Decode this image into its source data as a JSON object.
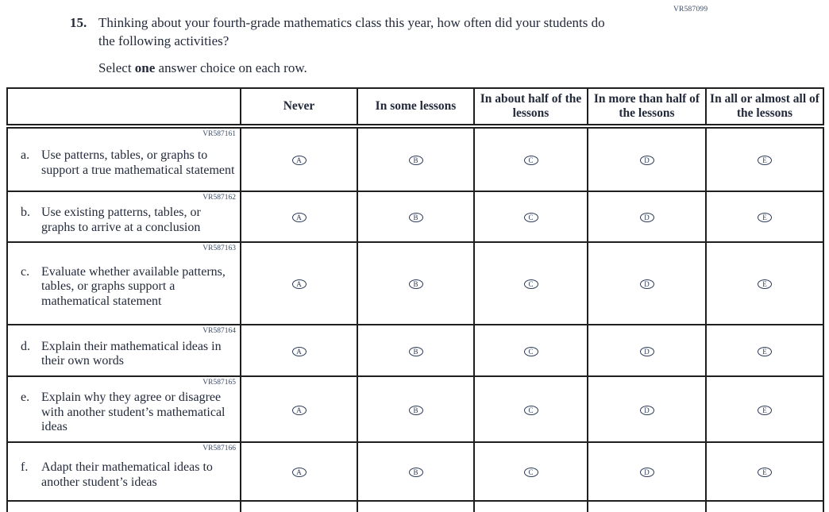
{
  "page": {
    "form_code": "VR587099",
    "question": {
      "number": "15.",
      "text": "Thinking about your fourth-grade mathematics class this year, how often did your students do the following activities?",
      "instruction_prefix": "Select ",
      "instruction_bold": "one",
      "instruction_suffix": " answer choice on each row."
    },
    "table": {
      "columns": [
        "Never",
        "In some lessons",
        "In about half of the lessons",
        "In more than half of the lessons",
        "In all or almost all of the lessons"
      ],
      "options": [
        "A",
        "B",
        "C",
        "D",
        "E"
      ],
      "rows": [
        {
          "code": "VR587161",
          "letter": "a.",
          "text": "Use patterns, tables, or graphs to support a true mathematical statement"
        },
        {
          "code": "VR587162",
          "letter": "b.",
          "text": "Use existing patterns, tables, or graphs to arrive at a conclusion"
        },
        {
          "code": "VR587163",
          "letter": "c.",
          "text": "Evaluate whether available patterns, tables, or graphs support a mathematical statement"
        },
        {
          "code": "VR587164",
          "letter": "d.",
          "text": "Explain their mathematical ideas in their own words"
        },
        {
          "code": "VR587165",
          "letter": "e.",
          "text": "Explain why they agree or disagree with another student’s mathematical ideas"
        },
        {
          "code": "VR587166",
          "letter": "f.",
          "text": "Adapt their mathematical ideas to another student’s ideas"
        }
      ]
    },
    "colors": {
      "ink": "#232a3a",
      "border": "#1f1f1f",
      "bubble": "#2c3a58",
      "code": "#3c4a66"
    }
  }
}
